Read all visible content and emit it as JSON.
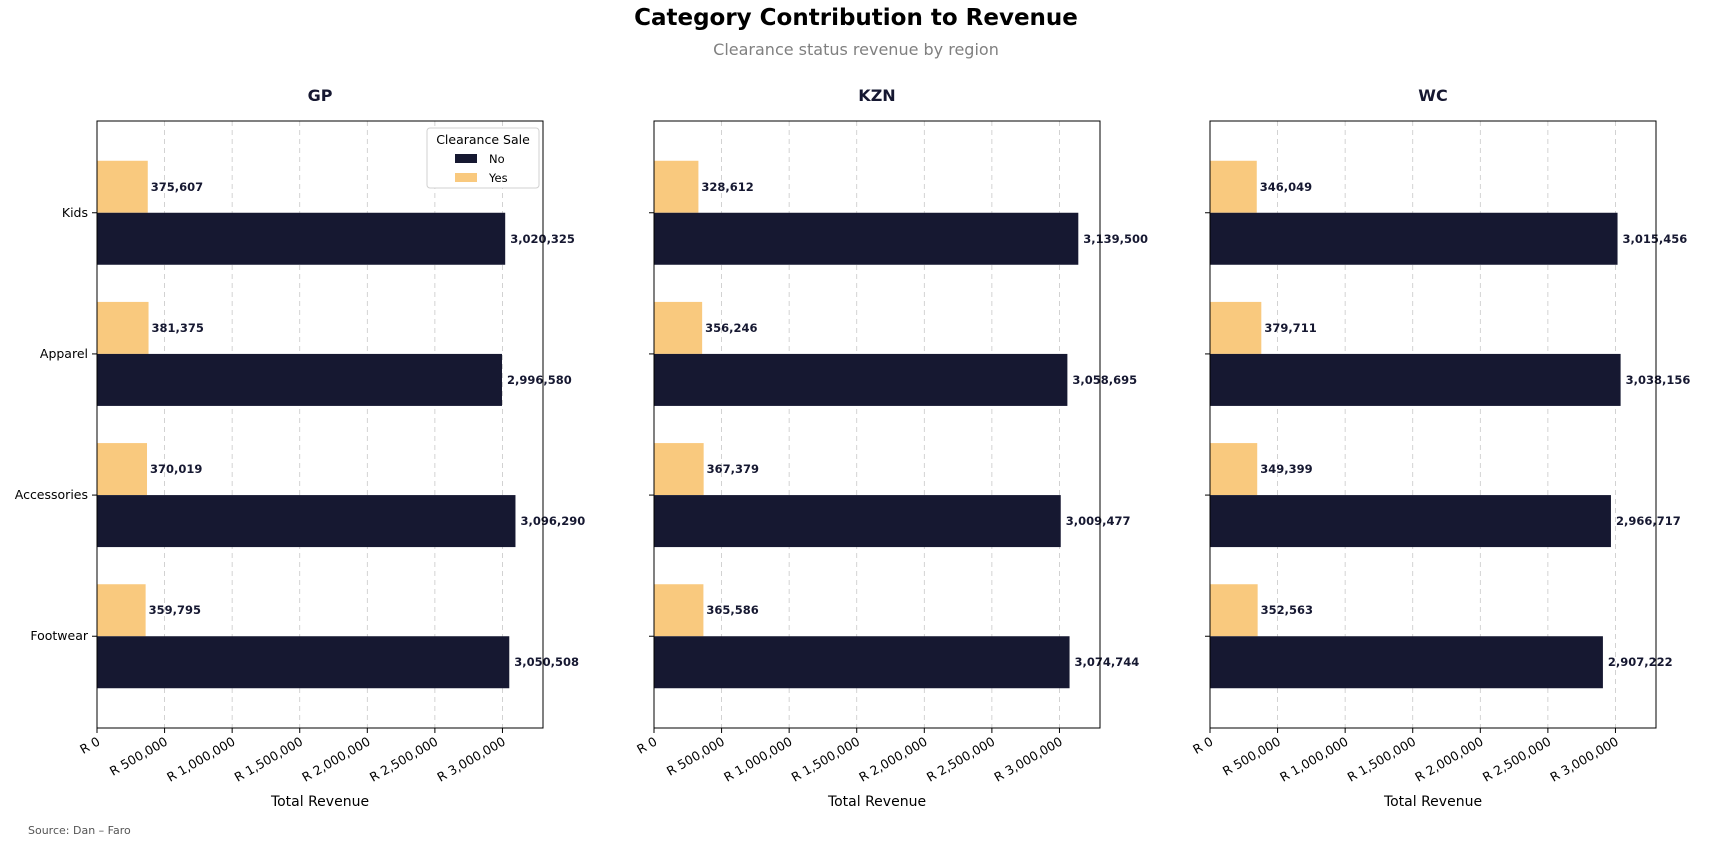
{
  "header": {
    "title": "Category Contribution to Revenue",
    "subtitle": "Clearance status revenue by region",
    "source": "Source: Dan – Faro"
  },
  "colors": {
    "No": "#161831",
    "Yes": "#f9c97e"
  },
  "chart_data": {
    "type": "bar",
    "orientation": "horizontal",
    "categories": [
      "Kids",
      "Apparel",
      "Accessories",
      "Footwear"
    ],
    "xlabel": "Total Revenue",
    "xlim": [
      0,
      3300000
    ],
    "x_ticks": [
      0,
      500000,
      1000000,
      1500000,
      2000000,
      2500000,
      3000000
    ],
    "x_tick_labels": [
      "R 0",
      "R 500,000",
      "R 1,000,000",
      "R 1,500,000",
      "R 2,000,000",
      "R 2,500,000",
      "R 3,000,000"
    ],
    "grid": "x-dashed",
    "legend": {
      "title": "Clearance Sale",
      "entries": [
        "No",
        "Yes"
      ],
      "placement": "top-right",
      "panel": "GP"
    },
    "panels": [
      {
        "title": "GP",
        "series": [
          {
            "name": "No",
            "values": [
              3020325,
              2996580,
              3096290,
              3050508
            ],
            "labels": [
              "3,020,325",
              "2,996,580",
              "3,096,290",
              "3,050,508"
            ]
          },
          {
            "name": "Yes",
            "values": [
              375607,
              381375,
              370019,
              359795
            ],
            "labels": [
              "375,607",
              "381,375",
              "370,019",
              "359,795"
            ]
          }
        ]
      },
      {
        "title": "KZN",
        "series": [
          {
            "name": "No",
            "values": [
              3139500,
              3058695,
              3009477,
              3074744
            ],
            "labels": [
              "3,139,500",
              "3,058,695",
              "3,009,477",
              "3,074,744"
            ]
          },
          {
            "name": "Yes",
            "values": [
              328612,
              356246,
              367379,
              365586
            ],
            "labels": [
              "328,612",
              "356,246",
              "367,379",
              "365,586"
            ]
          }
        ]
      },
      {
        "title": "WC",
        "series": [
          {
            "name": "No",
            "values": [
              3015456,
              3038156,
              2966717,
              2907222
            ],
            "labels": [
              "3,015,456",
              "3,038,156",
              "2,966,717",
              "2,907,222"
            ]
          },
          {
            "name": "Yes",
            "values": [
              346049,
              379711,
              349399,
              352563
            ],
            "labels": [
              "346,049",
              "379,711",
              "349,399",
              "352,563"
            ]
          }
        ]
      }
    ]
  }
}
